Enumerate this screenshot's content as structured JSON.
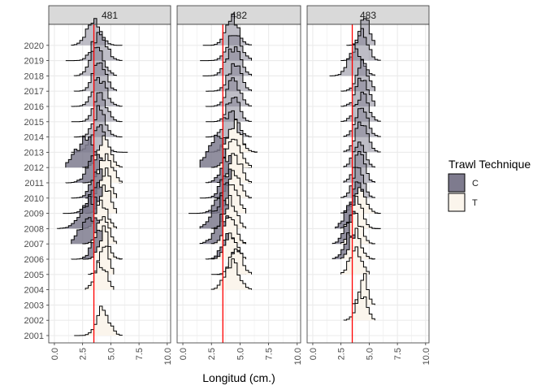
{
  "chart_data": {
    "type": "ridgeline-histogram",
    "xlabel": "Longitud (cm.)",
    "ylabel": "",
    "xlim": [
      -0.5,
      10.3
    ],
    "x_ticks": [
      "0.0",
      "2.5",
      "5.0",
      "7.5",
      "10.0"
    ],
    "x_tick_values": [
      0,
      2.5,
      5,
      7.5,
      10
    ],
    "years": [
      "2001",
      "2002",
      "2003",
      "2004",
      "2005",
      "2006",
      "2007",
      "2008",
      "2009",
      "2010",
      "2011",
      "2012",
      "2013",
      "2014",
      "2015",
      "2016",
      "2017",
      "2018",
      "2019",
      "2020"
    ],
    "reference_line_x": 3.5,
    "reference_line_color": "#ff0000",
    "legend": {
      "title": "Trawl Technique",
      "placement": "right",
      "entries": [
        {
          "label": "C",
          "color": "#7e7b8e"
        },
        {
          "label": "T",
          "color": "#fbf5ec"
        }
      ]
    },
    "colors": {
      "C": "#7e7b8e",
      "T": "#fbf5ec",
      "overlap": "#bcb8b6"
    },
    "facets": [
      {
        "label": "481",
        "ridges": [
          {
            "year": "2001",
            "series": [
              {
                "group": "T",
                "mean": 4.3,
                "sd": 0.55,
                "min": 1.8,
                "max": 5.8
              }
            ]
          },
          {
            "year": "2004",
            "series": [
              {
                "group": "T",
                "mean": 4.1,
                "sd": 0.5,
                "min": 2.8,
                "max": 5.2
              }
            ]
          },
          {
            "year": "2005",
            "series": [
              {
                "group": "T",
                "mean": 4.4,
                "sd": 0.4,
                "min": 3.2,
                "max": 5.2
              }
            ]
          },
          {
            "year": "2006",
            "series": [
              {
                "group": "C",
                "mean": 4.0,
                "sd": 0.6,
                "min": 1.5,
                "max": 5.8
              },
              {
                "group": "T",
                "mean": 4.4,
                "sd": 0.45,
                "min": 2.5,
                "max": 5.8
              }
            ]
          },
          {
            "year": "2007",
            "series": [
              {
                "group": "C",
                "mean": 3.3,
                "sd": 0.9,
                "min": 1.5,
                "max": 5.2
              },
              {
                "group": "T",
                "mean": 4.3,
                "sd": 0.5,
                "min": 2.5,
                "max": 5.3
              }
            ]
          },
          {
            "year": "2008",
            "series": [
              {
                "group": "C",
                "mean": 3.3,
                "sd": 0.9,
                "min": 0.4,
                "max": 5.5
              },
              {
                "group": "T",
                "mean": 4.2,
                "sd": 0.5,
                "min": 2.5,
                "max": 5.5
              }
            ]
          },
          {
            "year": "2009",
            "series": [
              {
                "group": "C",
                "mean": 3.8,
                "sd": 0.7,
                "min": 0.8,
                "max": 5.5
              },
              {
                "group": "T",
                "mean": 4.5,
                "sd": 0.45,
                "min": 2.8,
                "max": 5.5
              }
            ]
          },
          {
            "year": "2010",
            "series": [
              {
                "group": "C",
                "mean": 4.0,
                "sd": 0.65,
                "min": 1.5,
                "max": 5.5
              },
              {
                "group": "T",
                "mean": 4.5,
                "sd": 0.45,
                "min": 2.8,
                "max": 5.5
              }
            ]
          },
          {
            "year": "2011",
            "series": [
              {
                "group": "C",
                "mean": 3.7,
                "sd": 0.7,
                "min": 1.2,
                "max": 5.8
              },
              {
                "group": "T",
                "mean": 4.6,
                "sd": 0.55,
                "min": 2.5,
                "max": 5.8
              }
            ]
          },
          {
            "year": "2012",
            "series": [
              {
                "group": "C",
                "mean": 2.8,
                "sd": 0.9,
                "min": 1.0,
                "max": 5.5
              },
              {
                "group": "T",
                "mean": 4.4,
                "sd": 0.55,
                "min": 2.5,
                "max": 5.8
              }
            ]
          },
          {
            "year": "2013",
            "series": [
              {
                "group": "C",
                "mean": 3.8,
                "sd": 0.6,
                "min": 1.5,
                "max": 6.5
              }
            ]
          },
          {
            "year": "2014",
            "series": [
              {
                "group": "C",
                "mean": 4.0,
                "sd": 0.55,
                "min": 1.8,
                "max": 6.0
              }
            ]
          },
          {
            "year": "2015",
            "series": [
              {
                "group": "C",
                "mean": 4.1,
                "sd": 0.55,
                "min": 1.5,
                "max": 6.0
              }
            ]
          },
          {
            "year": "2016",
            "series": [
              {
                "group": "C",
                "mean": 4.0,
                "sd": 0.6,
                "min": 1.5,
                "max": 6.0
              }
            ]
          },
          {
            "year": "2017",
            "series": [
              {
                "group": "C",
                "mean": 4.0,
                "sd": 0.55,
                "min": 1.8,
                "max": 5.3
              }
            ]
          },
          {
            "year": "2018",
            "series": [
              {
                "group": "C",
                "mean": 3.8,
                "sd": 0.6,
                "min": 1.8,
                "max": 5.5
              }
            ]
          },
          {
            "year": "2019",
            "series": [
              {
                "group": "C",
                "mean": 4.0,
                "sd": 0.6,
                "min": 1.2,
                "max": 6.0
              }
            ]
          },
          {
            "year": "2020",
            "series": [
              {
                "group": "C",
                "mean": 3.5,
                "sd": 0.6,
                "min": 1.5,
                "max": 5.8
              }
            ]
          }
        ]
      },
      {
        "label": "482",
        "ridges": [
          {
            "year": "2004",
            "series": [
              {
                "group": "T",
                "mean": 4.3,
                "sd": 0.6,
                "min": 2.5,
                "max": 5.8
              }
            ]
          },
          {
            "year": "2005",
            "series": [
              {
                "group": "C",
                "mean": 4.6,
                "sd": 0.35,
                "min": 3.0,
                "max": 5.5
              },
              {
                "group": "T",
                "mean": 4.7,
                "sd": 0.5,
                "min": 2.5,
                "max": 5.8
              }
            ]
          },
          {
            "year": "2006",
            "series": [
              {
                "group": "C",
                "mean": 4.0,
                "sd": 0.55,
                "min": 2.0,
                "max": 5.5
              },
              {
                "group": "T",
                "mean": 4.2,
                "sd": 0.5,
                "min": 2.5,
                "max": 5.5
              }
            ]
          },
          {
            "year": "2007",
            "series": [
              {
                "group": "C",
                "mean": 3.6,
                "sd": 0.7,
                "min": 1.5,
                "max": 5.5
              },
              {
                "group": "T",
                "mean": 4.1,
                "sd": 0.5,
                "min": 2.5,
                "max": 5.5
              }
            ]
          },
          {
            "year": "2008",
            "series": [
              {
                "group": "C",
                "mean": 3.5,
                "sd": 0.8,
                "min": 1.5,
                "max": 5.5
              },
              {
                "group": "T",
                "mean": 4.2,
                "sd": 0.5,
                "min": 2.5,
                "max": 5.5
              }
            ]
          },
          {
            "year": "2009",
            "series": [
              {
                "group": "C",
                "mean": 3.8,
                "sd": 0.7,
                "min": 0.5,
                "max": 5.5
              },
              {
                "group": "T",
                "mean": 4.4,
                "sd": 0.5,
                "min": 2.5,
                "max": 5.5
              }
            ]
          },
          {
            "year": "2010",
            "series": [
              {
                "group": "C",
                "mean": 4.0,
                "sd": 0.6,
                "min": 1.5,
                "max": 5.8
              },
              {
                "group": "T",
                "mean": 4.5,
                "sd": 0.5,
                "min": 2.8,
                "max": 5.8
              }
            ]
          },
          {
            "year": "2011",
            "series": [
              {
                "group": "C",
                "mean": 4.0,
                "sd": 0.6,
                "min": 2.0,
                "max": 6.0
              },
              {
                "group": "T",
                "mean": 4.6,
                "sd": 0.5,
                "min": 3.0,
                "max": 6.0
              }
            ]
          },
          {
            "year": "2012",
            "series": [
              {
                "group": "C",
                "mean": 3.0,
                "sd": 0.8,
                "min": 1.5,
                "max": 5.8
              },
              {
                "group": "T",
                "mean": 4.5,
                "sd": 0.6,
                "min": 2.5,
                "max": 6.0
              }
            ]
          },
          {
            "year": "2013",
            "series": [
              {
                "group": "C",
                "mean": 4.4,
                "sd": 0.6,
                "min": 2.0,
                "max": 6.5
              },
              {
                "group": "T",
                "mean": 4.5,
                "sd": 0.6,
                "min": 2.5,
                "max": 6.5
              }
            ]
          },
          {
            "year": "2014",
            "series": [
              {
                "group": "C",
                "mean": 4.2,
                "sd": 0.55,
                "min": 2.0,
                "max": 6.0
              }
            ]
          },
          {
            "year": "2015",
            "series": [
              {
                "group": "C",
                "mean": 4.4,
                "sd": 0.5,
                "min": 2.0,
                "max": 6.0
              }
            ]
          },
          {
            "year": "2016",
            "series": [
              {
                "group": "C",
                "mean": 4.4,
                "sd": 0.55,
                "min": 2.0,
                "max": 6.0
              }
            ]
          },
          {
            "year": "2017",
            "series": [
              {
                "group": "C",
                "mean": 4.5,
                "sd": 0.55,
                "min": 2.0,
                "max": 5.8
              }
            ]
          },
          {
            "year": "2018",
            "series": [
              {
                "group": "C",
                "mean": 4.4,
                "sd": 0.6,
                "min": 1.8,
                "max": 6.0
              }
            ]
          },
          {
            "year": "2019",
            "series": [
              {
                "group": "C",
                "mean": 4.5,
                "sd": 0.6,
                "min": 1.5,
                "max": 6.0
              }
            ]
          },
          {
            "year": "2020",
            "series": [
              {
                "group": "C",
                "mean": 4.3,
                "sd": 0.55,
                "min": 1.8,
                "max": 5.8
              }
            ]
          }
        ]
      },
      {
        "label": "483",
        "ridges": [
          {
            "year": "2002",
            "series": [
              {
                "group": "T",
                "mean": 4.3,
                "sd": 0.45,
                "min": 2.8,
                "max": 5.5
              }
            ]
          },
          {
            "year": "2003",
            "series": [
              {
                "group": "T",
                "mean": 4.5,
                "sd": 0.35,
                "min": 3.5,
                "max": 5.5
              }
            ]
          },
          {
            "year": "2005",
            "series": [
              {
                "group": "T",
                "mean": 3.8,
                "sd": 0.5,
                "min": 2.5,
                "max": 5.0
              }
            ]
          },
          {
            "year": "2006",
            "series": [
              {
                "group": "C",
                "mean": 3.5,
                "sd": 0.6,
                "min": 1.8,
                "max": 5.5
              },
              {
                "group": "T",
                "mean": 3.8,
                "sd": 0.5,
                "min": 2.5,
                "max": 5.5
              }
            ]
          },
          {
            "year": "2007",
            "series": [
              {
                "group": "C",
                "mean": 3.5,
                "sd": 0.6,
                "min": 1.8,
                "max": 5.5
              },
              {
                "group": "T",
                "mean": 3.8,
                "sd": 0.5,
                "min": 2.5,
                "max": 5.5
              }
            ]
          },
          {
            "year": "2008",
            "series": [
              {
                "group": "C",
                "mean": 3.5,
                "sd": 0.6,
                "min": 2.0,
                "max": 5.8
              },
              {
                "group": "T",
                "mean": 3.9,
                "sd": 0.5,
                "min": 2.5,
                "max": 5.8
              }
            ]
          },
          {
            "year": "2009",
            "series": [
              {
                "group": "C",
                "mean": 4.0,
                "sd": 0.5,
                "min": 2.5,
                "max": 5.8
              },
              {
                "group": "T",
                "mean": 4.2,
                "sd": 0.5,
                "min": 2.8,
                "max": 5.8
              }
            ]
          },
          {
            "year": "2010",
            "series": [
              {
                "group": "C",
                "mean": 4.0,
                "sd": 0.5,
                "min": 2.5,
                "max": 5.5
              }
            ]
          },
          {
            "year": "2011",
            "series": [
              {
                "group": "C",
                "mean": 4.1,
                "sd": 0.5,
                "min": 2.8,
                "max": 5.5
              }
            ]
          },
          {
            "year": "2012",
            "series": [
              {
                "group": "C",
                "mean": 4.1,
                "sd": 0.5,
                "min": 2.8,
                "max": 5.5
              }
            ]
          },
          {
            "year": "2013",
            "series": [
              {
                "group": "C",
                "mean": 4.3,
                "sd": 0.55,
                "min": 2.8,
                "max": 5.8
              }
            ]
          },
          {
            "year": "2014",
            "series": [
              {
                "group": "C",
                "mean": 4.3,
                "sd": 0.55,
                "min": 2.8,
                "max": 5.8
              }
            ]
          },
          {
            "year": "2015",
            "series": [
              {
                "group": "C",
                "mean": 4.3,
                "sd": 0.55,
                "min": 2.5,
                "max": 6.0
              }
            ]
          },
          {
            "year": "2016",
            "series": [
              {
                "group": "C",
                "mean": 4.4,
                "sd": 0.55,
                "min": 2.5,
                "max": 5.5
              }
            ]
          },
          {
            "year": "2017",
            "series": [
              {
                "group": "C",
                "mean": 4.4,
                "sd": 0.5,
                "min": 2.5,
                "max": 5.5
              }
            ]
          },
          {
            "year": "2018",
            "series": [
              {
                "group": "C",
                "mean": 3.8,
                "sd": 0.6,
                "min": 1.5,
                "max": 5.5
              }
            ]
          },
          {
            "year": "2019",
            "series": [
              {
                "group": "C",
                "mean": 4.4,
                "sd": 0.5,
                "min": 2.5,
                "max": 5.8
              }
            ]
          },
          {
            "year": "2020",
            "series": [
              {
                "group": "C",
                "mean": 4.6,
                "sd": 0.4,
                "min": 3.0,
                "max": 5.5
              }
            ]
          }
        ]
      }
    ]
  }
}
